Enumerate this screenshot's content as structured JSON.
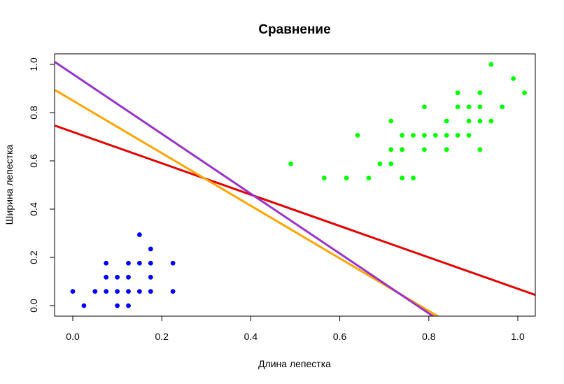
{
  "chart_data": {
    "type": "scatter",
    "title": "Сравнение",
    "xlabel": "Длина лепестка",
    "ylabel": "Ширина лепестка",
    "xlim": [
      -0.04,
      1.04
    ],
    "ylim": [
      -0.04,
      1.04
    ],
    "x_ticks": [
      "0.0",
      "0.2",
      "0.4",
      "0.6",
      "0.8",
      "1.0"
    ],
    "y_ticks": [
      "0.0",
      "0.2",
      "0.4",
      "0.6",
      "0.8",
      "1.0"
    ],
    "grid": false,
    "legend": "none",
    "series": [
      {
        "color": "#0000ff",
        "points": [
          [
            0.0,
            0.059
          ],
          [
            0.025,
            0.0
          ],
          [
            0.05,
            0.059
          ],
          [
            0.075,
            0.059
          ],
          [
            0.075,
            0.118
          ],
          [
            0.075,
            0.176
          ],
          [
            0.1,
            0.0
          ],
          [
            0.1,
            0.059
          ],
          [
            0.1,
            0.118
          ],
          [
            0.125,
            0.0
          ],
          [
            0.125,
            0.059
          ],
          [
            0.125,
            0.118
          ],
          [
            0.125,
            0.176
          ],
          [
            0.15,
            0.059
          ],
          [
            0.15,
            0.176
          ],
          [
            0.15,
            0.294
          ],
          [
            0.175,
            0.059
          ],
          [
            0.175,
            0.118
          ],
          [
            0.175,
            0.176
          ],
          [
            0.175,
            0.235
          ],
          [
            0.225,
            0.059
          ],
          [
            0.225,
            0.176
          ]
        ]
      },
      {
        "color": "#00ff00",
        "points": [
          [
            0.49,
            0.588
          ],
          [
            0.565,
            0.529
          ],
          [
            0.615,
            0.529
          ],
          [
            0.64,
            0.706
          ],
          [
            0.665,
            0.529
          ],
          [
            0.69,
            0.588
          ],
          [
            0.715,
            0.588
          ],
          [
            0.715,
            0.647
          ],
          [
            0.715,
            0.765
          ],
          [
            0.74,
            0.529
          ],
          [
            0.74,
            0.647
          ],
          [
            0.74,
            0.706
          ],
          [
            0.765,
            0.529
          ],
          [
            0.765,
            0.706
          ],
          [
            0.79,
            0.647
          ],
          [
            0.79,
            0.706
          ],
          [
            0.79,
            0.824
          ],
          [
            0.815,
            0.706
          ],
          [
            0.84,
            0.647
          ],
          [
            0.84,
            0.706
          ],
          [
            0.84,
            0.765
          ],
          [
            0.865,
            0.706
          ],
          [
            0.865,
            0.824
          ],
          [
            0.865,
            0.882
          ],
          [
            0.89,
            0.706
          ],
          [
            0.89,
            0.765
          ],
          [
            0.89,
            0.824
          ],
          [
            0.915,
            0.647
          ],
          [
            0.915,
            0.765
          ],
          [
            0.915,
            0.824
          ],
          [
            0.915,
            0.882
          ],
          [
            0.94,
            0.765
          ],
          [
            0.94,
            1.0
          ],
          [
            0.965,
            0.824
          ],
          [
            0.99,
            0.941
          ],
          [
            1.015,
            0.882
          ]
        ]
      }
    ],
    "lines": [
      {
        "color": "#e60000",
        "intercept": 0.72,
        "slope": -0.65
      },
      {
        "color": "#ffa500",
        "intercept": 0.85,
        "slope": -1.09
      },
      {
        "color": "#9932cc",
        "intercept": 0.96,
        "slope": -1.24
      }
    ]
  }
}
